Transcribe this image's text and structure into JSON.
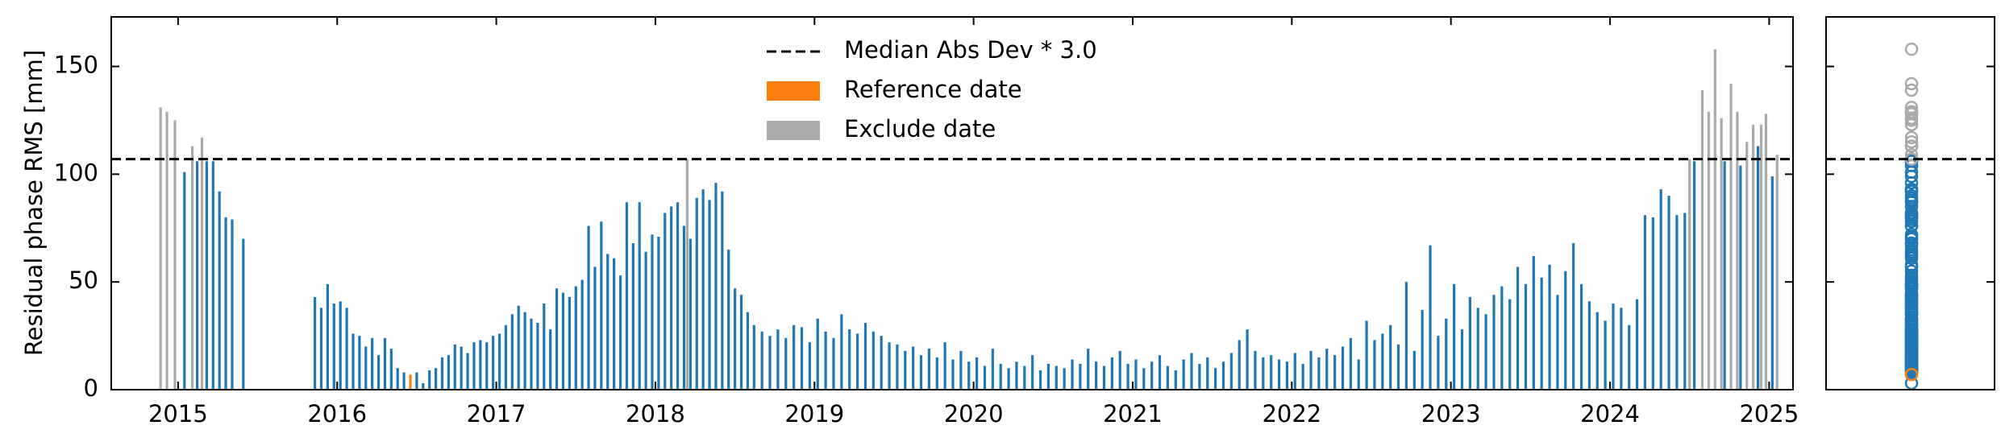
{
  "chart_data": {
    "type": "bar",
    "ylabel": "Residual phase RMS [mm]",
    "xlim": [
      2014.58,
      2025.15
    ],
    "ylim": [
      0,
      173
    ],
    "xticks": [
      2015,
      2016,
      2017,
      2018,
      2019,
      2020,
      2021,
      2022,
      2023,
      2024,
      2025
    ],
    "yticks": [
      0,
      50,
      100,
      150
    ],
    "threshold": {
      "name": "Median Abs Dev * 3.0",
      "value": 107,
      "color": "#000000"
    },
    "series": [
      {
        "color": "#1f77b4",
        "x": [
          2015.04,
          2015.12,
          2015.18,
          2015.22,
          2015.26,
          2015.3,
          2015.34,
          2015.41,
          2015.86,
          2015.9,
          2015.94,
          2015.98,
          2016.02,
          2016.06,
          2016.1,
          2016.14,
          2016.18,
          2016.22,
          2016.26,
          2016.3,
          2016.34,
          2016.38,
          2016.42,
          2016.5,
          2016.54,
          2016.58,
          2016.62,
          2016.66,
          2016.7,
          2016.74,
          2016.78,
          2016.82,
          2016.86,
          2016.9,
          2016.94,
          2016.98,
          2017.02,
          2017.06,
          2017.1,
          2017.14,
          2017.18,
          2017.22,
          2017.26,
          2017.3,
          2017.34,
          2017.38,
          2017.42,
          2017.46,
          2017.5,
          2017.54,
          2017.58,
          2017.62,
          2017.66,
          2017.7,
          2017.74,
          2017.78,
          2017.82,
          2017.86,
          2017.9,
          2017.94,
          2017.98,
          2018.02,
          2018.06,
          2018.1,
          2018.14,
          2018.18,
          2018.22,
          2018.26,
          2018.3,
          2018.34,
          2018.38,
          2018.42,
          2018.46,
          2018.5,
          2018.54,
          2018.58,
          2018.62,
          2018.67,
          2018.72,
          2018.77,
          2018.82,
          2018.87,
          2018.92,
          2018.97,
          2019.02,
          2019.07,
          2019.12,
          2019.17,
          2019.22,
          2019.27,
          2019.32,
          2019.37,
          2019.42,
          2019.47,
          2019.52,
          2019.57,
          2019.62,
          2019.67,
          2019.72,
          2019.77,
          2019.82,
          2019.87,
          2019.92,
          2019.97,
          2020.02,
          2020.07,
          2020.12,
          2020.17,
          2020.22,
          2020.27,
          2020.32,
          2020.37,
          2020.42,
          2020.47,
          2020.52,
          2020.57,
          2020.62,
          2020.67,
          2020.72,
          2020.77,
          2020.82,
          2020.87,
          2020.92,
          2020.97,
          2021.02,
          2021.07,
          2021.12,
          2021.17,
          2021.22,
          2021.27,
          2021.32,
          2021.37,
          2021.42,
          2021.47,
          2021.52,
          2021.57,
          2021.62,
          2021.67,
          2021.72,
          2021.77,
          2021.82,
          2021.87,
          2021.92,
          2021.97,
          2022.02,
          2022.07,
          2022.12,
          2022.17,
          2022.22,
          2022.27,
          2022.32,
          2022.37,
          2022.42,
          2022.47,
          2022.52,
          2022.57,
          2022.62,
          2022.67,
          2022.72,
          2022.77,
          2022.82,
          2022.87,
          2022.92,
          2022.97,
          2023.02,
          2023.07,
          2023.12,
          2023.17,
          2023.22,
          2023.27,
          2023.32,
          2023.37,
          2023.42,
          2023.47,
          2023.52,
          2023.57,
          2023.62,
          2023.67,
          2023.72,
          2023.77,
          2023.82,
          2023.87,
          2023.92,
          2023.97,
          2024.02,
          2024.07,
          2024.12,
          2024.17,
          2024.22,
          2024.27,
          2024.32,
          2024.37,
          2024.42,
          2024.47,
          2024.53,
          2024.72,
          2024.82,
          2024.93,
          2025.02
        ],
        "values": [
          101,
          106,
          106,
          106,
          92,
          80,
          79,
          70,
          43,
          38,
          49,
          40,
          41,
          38,
          26,
          25,
          20,
          24,
          16,
          24,
          19,
          10,
          8,
          8,
          3,
          9,
          10,
          15,
          16,
          21,
          20,
          17,
          22,
          23,
          22,
          25,
          26,
          30,
          35,
          39,
          36,
          33,
          31,
          40,
          28,
          47,
          45,
          43,
          48,
          51,
          76,
          57,
          78,
          63,
          61,
          53,
          87,
          68,
          87,
          64,
          72,
          71,
          82,
          85,
          87,
          76,
          70,
          89,
          93,
          88,
          96,
          92,
          65,
          47,
          44,
          36,
          30,
          27,
          25,
          28,
          24,
          30,
          29,
          22,
          33,
          27,
          24,
          35,
          28,
          26,
          31,
          27,
          25,
          22,
          21,
          18,
          20,
          16,
          19,
          15,
          22,
          14,
          18,
          13,
          15,
          11,
          19,
          12,
          10,
          13,
          11,
          16,
          9,
          12,
          11,
          10,
          14,
          12,
          19,
          13,
          11,
          15,
          18,
          12,
          14,
          10,
          13,
          16,
          11,
          9,
          14,
          17,
          12,
          15,
          10,
          13,
          17,
          23,
          28,
          18,
          15,
          16,
          14,
          13,
          17,
          12,
          18,
          15,
          19,
          16,
          20,
          24,
          14,
          32,
          23,
          26,
          30,
          21,
          50,
          18,
          37,
          67,
          25,
          33,
          49,
          28,
          43,
          38,
          35,
          44,
          48,
          42,
          57,
          49,
          62,
          52,
          58,
          44,
          55,
          68,
          49,
          41,
          36,
          32,
          40,
          38,
          30,
          42,
          81,
          80,
          93,
          90,
          81,
          82,
          106,
          106,
          104,
          113,
          99
        ]
      },
      {
        "name": "Reference date",
        "color": "#ff7f0e",
        "x": [
          2016.46
        ],
        "values": [
          7
        ]
      },
      {
        "name": "Exclude date",
        "color": "#aaaaaa",
        "x": [
          2014.89,
          2014.93,
          2014.98,
          2015.09,
          2015.15,
          2018.2,
          2024.5,
          2024.58,
          2024.62,
          2024.66,
          2024.7,
          2024.76,
          2024.8,
          2024.86,
          2024.9,
          2024.95,
          2024.98,
          2025.05
        ],
        "values": [
          131,
          129,
          125,
          113,
          117,
          107,
          107,
          139,
          129,
          158,
          126,
          142,
          129,
          115,
          123,
          123,
          128,
          109
        ]
      }
    ]
  }
}
